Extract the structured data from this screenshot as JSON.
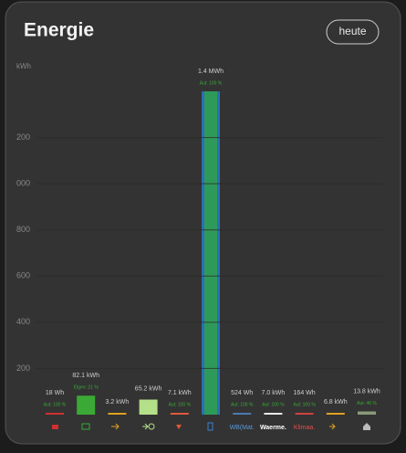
{
  "header": {
    "title": "Energie",
    "button": "heute"
  },
  "chart_data": {
    "type": "bar",
    "y_label": "kWh",
    "categories": [
      null,
      null,
      null,
      null,
      null,
      null,
      "WB(Mat.",
      "Waerme.",
      "Klimaa.",
      null,
      null
    ],
    "category_colors": [
      "#d03030",
      "#3aa935",
      "#e0a020",
      "#b5e08a",
      "#e05a3a",
      "#3a7fd0",
      "#5a9ad8",
      "#ffffff",
      "#e05050",
      "#e0a020",
      "#bbbbbb"
    ],
    "values": [
      0.018,
      82.1,
      3.2,
      65.2,
      7.1,
      1400,
      0.524,
      7.0,
      0.164,
      6.8,
      13.8
    ],
    "value_labels": [
      "18 Wh",
      "82.1 kWh",
      "3.2 kWh",
      "65.2 kWh",
      "7.1 kWh",
      "1.4 MWh",
      "524 Wh",
      "7.0 kWh",
      "164 Wh",
      "6.8 kWh",
      "13.8 kWh"
    ],
    "sublabels": [
      "Aut: 100 %",
      "Eigen: 21 %",
      null,
      null,
      "Aut: 100 %",
      "Aut: 100 %",
      "Aut: 100 %",
      "Aut: 100 %",
      "Aut: 100 %",
      null,
      "Aut: 46 %"
    ],
    "colors": [
      "#d03030",
      "#3aa935",
      "#e0a020",
      "#b5e08a",
      "#e05a3a",
      "#2a6fb5",
      "#4a7ab0",
      "#e8e8e8",
      "#d04040",
      "#e0a020",
      "#8a9a7a"
    ],
    "ylim": [
      0,
      1420
    ],
    "yticks": [
      200,
      400,
      600,
      800,
      {
        "value": 1000,
        "label": "000"
      },
      {
        "value": 1200,
        "label": "200"
      }
    ],
    "grid": true
  }
}
